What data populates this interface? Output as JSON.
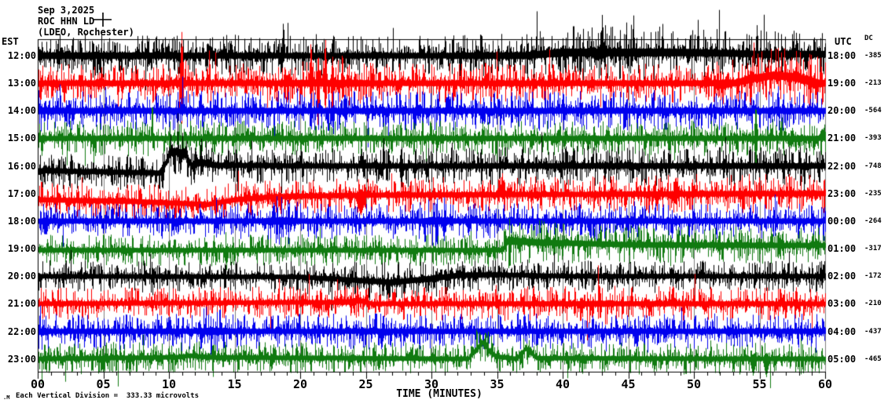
{
  "header": {
    "date": "Sep 3,2025",
    "station": "ROC HHN LD",
    "network": "(LDEO, Rochester)"
  },
  "axes": {
    "left_title": "EST",
    "right_title": "UTC",
    "dc_title": "DC",
    "x_title": "TIME (MINUTES)"
  },
  "footer": {
    "mark": ".M",
    "note": "Each Vertical Division =  333.33 microvolts"
  },
  "chart_data": {
    "type": "line",
    "subtype": "helicorder-seismogram",
    "title": "ROC HHN LD (LDEO, Rochester) Sep 3,2025",
    "xlabel": "TIME (MINUTES)",
    "x_range": [
      0,
      60
    ],
    "x_major_tick": 5,
    "x_minor_tick": 1,
    "x_tick_labels": [
      "00",
      "05",
      "10",
      "15",
      "20",
      "25",
      "30",
      "35",
      "40",
      "45",
      "50",
      "55",
      "60"
    ],
    "grid": true,
    "grid_color": "#808080",
    "vertical_division_microvolts": 333.33,
    "trace_colors_cycle": [
      "#000000",
      "#ff0000",
      "#0000ee",
      "#107a10"
    ],
    "traces": [
      {
        "est": "12:00",
        "utc": "18:00",
        "dc": "-385",
        "color": "#000000",
        "spike_prob": 0.05,
        "band_env": [
          [
            0,
            12
          ],
          [
            10,
            11
          ],
          [
            20,
            10
          ],
          [
            30,
            10
          ],
          [
            36,
            12
          ],
          [
            40,
            14
          ],
          [
            48,
            14
          ],
          [
            52,
            12
          ],
          [
            60,
            12
          ]
        ],
        "drift_env": [
          [
            0,
            0
          ],
          [
            37,
            0
          ],
          [
            40,
            4
          ],
          [
            50,
            4
          ],
          [
            55,
            2
          ],
          [
            60,
            2
          ]
        ],
        "spikes": [
          [
            18.7,
            46,
            10,
            0.15
          ],
          [
            21.2,
            28,
            8,
            0.12
          ],
          [
            33.8,
            34,
            10,
            0.12
          ],
          [
            43.0,
            50,
            12,
            0.15
          ],
          [
            47.6,
            38,
            10,
            0.12
          ],
          [
            50.3,
            42,
            10,
            0.12
          ],
          [
            54.8,
            40,
            10,
            0.12
          ],
          [
            57.5,
            30,
            8,
            0.1
          ]
        ]
      },
      {
        "est": "13:00",
        "utc": "19:00",
        "dc": "-213",
        "color": "#ff0000",
        "spike_prob": 0.05,
        "band_env": [
          [
            0,
            10
          ],
          [
            18,
            10
          ],
          [
            20,
            12
          ],
          [
            24,
            12
          ],
          [
            26,
            10
          ],
          [
            50,
            10
          ],
          [
            54,
            13
          ],
          [
            59,
            15
          ],
          [
            60,
            12
          ]
        ],
        "drift_env": [
          [
            0,
            0
          ],
          [
            53,
            0
          ],
          [
            54.5,
            6
          ],
          [
            56,
            10
          ],
          [
            57.5,
            8
          ],
          [
            58.5,
            4
          ],
          [
            59.5,
            0
          ],
          [
            60,
            0
          ]
        ],
        "spikes": [
          [
            6.5,
            28,
            10,
            0.1
          ],
          [
            10.96,
            66,
            52,
            0.2
          ],
          [
            20.8,
            58,
            30,
            0.15
          ],
          [
            21.35,
            40,
            68,
            0.15
          ],
          [
            21.9,
            62,
            40,
            0.15
          ],
          [
            22.45,
            35,
            55,
            0.15
          ],
          [
            23.2,
            45,
            25,
            0.12
          ],
          [
            25.4,
            25,
            12,
            0.1
          ],
          [
            34.1,
            34,
            10,
            0.12
          ]
        ]
      },
      {
        "est": "14:00",
        "utc": "20:00",
        "dc": "-564",
        "color": "#0000ee",
        "spike_prob": 0.045,
        "band_env": [
          [
            0,
            12
          ],
          [
            2,
            10
          ],
          [
            30,
            10
          ],
          [
            60,
            10
          ]
        ],
        "drift_env": [
          [
            0,
            0
          ],
          [
            60,
            0
          ]
        ],
        "spikes": [
          [
            13.5,
            18,
            14,
            0.15
          ],
          [
            22.5,
            10,
            34,
            0.12
          ]
        ]
      },
      {
        "est": "15:00",
        "utc": "21:00",
        "dc": "-393",
        "color": "#107a10",
        "spike_prob": 0.04,
        "band_env": [
          [
            0,
            9
          ],
          [
            60,
            9
          ]
        ],
        "drift_env": [
          [
            0,
            0
          ],
          [
            60,
            0
          ]
        ],
        "spikes": [
          [
            40.2,
            16,
            12,
            0.1
          ],
          [
            54.7,
            46,
            40,
            0.15
          ]
        ]
      },
      {
        "est": "16:00",
        "utc": "22:00",
        "dc": "-748",
        "color": "#000000",
        "spike_prob": 0.045,
        "band_env": [
          [
            0,
            9
          ],
          [
            9.4,
            9
          ],
          [
            10,
            13
          ],
          [
            12.5,
            12
          ],
          [
            14,
            9
          ],
          [
            30,
            9
          ],
          [
            40,
            10
          ],
          [
            60,
            10
          ]
        ],
        "drift_env": [
          [
            0,
            -6
          ],
          [
            9.2,
            -9
          ],
          [
            9.7,
            2
          ],
          [
            10.1,
            19
          ],
          [
            11.2,
            16
          ],
          [
            11.7,
            0
          ],
          [
            12.4,
            5
          ],
          [
            13.5,
            1
          ],
          [
            20,
            0
          ],
          [
            60,
            0
          ]
        ],
        "spikes": [
          [
            9.5,
            6,
            30,
            0.2
          ],
          [
            10.45,
            4,
            40,
            0.1
          ],
          [
            11.9,
            8,
            26,
            0.15
          ],
          [
            15.2,
            10,
            36,
            0.12
          ],
          [
            27.7,
            30,
            34,
            0.12
          ]
        ]
      },
      {
        "est": "17:00",
        "utc": "23:00",
        "dc": "-235",
        "color": "#ff0000",
        "spike_prob": 0.04,
        "band_env": [
          [
            0,
            9
          ],
          [
            40,
            9
          ],
          [
            50,
            10
          ],
          [
            60,
            10
          ]
        ],
        "drift_env": [
          [
            0,
            -8
          ],
          [
            7,
            -10
          ],
          [
            13,
            -14
          ],
          [
            15,
            -8
          ],
          [
            18,
            -4
          ],
          [
            25,
            -2
          ],
          [
            60,
            0
          ]
        ],
        "spikes": [
          [
            23.8,
            6,
            18,
            0.2
          ],
          [
            24.6,
            8,
            26,
            0.5
          ],
          [
            35.4,
            30,
            10,
            0.12
          ],
          [
            47,
            18,
            8,
            0.1
          ]
        ]
      },
      {
        "est": "18:00",
        "utc": "00:00",
        "dc": "-264",
        "color": "#0000ee",
        "spike_prob": 0.04,
        "band_env": [
          [
            0,
            9
          ],
          [
            17,
            9
          ],
          [
            18,
            13
          ],
          [
            19,
            13
          ],
          [
            20,
            9
          ],
          [
            29,
            9
          ],
          [
            30,
            13
          ],
          [
            31,
            12
          ],
          [
            32,
            9
          ],
          [
            44,
            9
          ],
          [
            45,
            11
          ],
          [
            46,
            9
          ],
          [
            60,
            9
          ]
        ],
        "drift_env": [
          [
            0,
            0
          ],
          [
            60,
            0
          ]
        ],
        "spikes": [
          [
            24.5,
            8,
            20,
            0.1
          ]
        ]
      },
      {
        "est": "19:00",
        "utc": "01:00",
        "dc": "-317",
        "color": "#107a10",
        "spike_prob": 0.04,
        "band_env": [
          [
            0,
            8
          ],
          [
            35.4,
            8
          ],
          [
            35.8,
            14
          ],
          [
            37,
            12
          ],
          [
            40,
            10
          ],
          [
            60,
            9
          ]
        ],
        "drift_env": [
          [
            0,
            -2
          ],
          [
            35.4,
            -2
          ],
          [
            35.8,
            10
          ],
          [
            38,
            8
          ],
          [
            45,
            5
          ],
          [
            60,
            4
          ]
        ],
        "spikes": [
          [
            35.6,
            24,
            6,
            0.15
          ]
        ]
      },
      {
        "est": "20:00",
        "utc": "02:00",
        "dc": "-172",
        "color": "#000000",
        "spike_prob": 0.04,
        "band_env": [
          [
            0,
            8
          ],
          [
            20,
            8
          ],
          [
            26,
            10
          ],
          [
            33,
            10
          ],
          [
            36,
            8
          ],
          [
            60,
            8
          ]
        ],
        "drift_env": [
          [
            0,
            0
          ],
          [
            20,
            -1
          ],
          [
            24,
            -5
          ],
          [
            27,
            -8
          ],
          [
            30,
            -3
          ],
          [
            32,
            1
          ],
          [
            35,
            2
          ],
          [
            40,
            0
          ],
          [
            60,
            0
          ]
        ],
        "spikes": [
          [
            10.5,
            18,
            8,
            0.1
          ],
          [
            26.6,
            6,
            26,
            0.12
          ],
          [
            52.8,
            16,
            14,
            0.1
          ]
        ]
      },
      {
        "est": "21:00",
        "utc": "03:00",
        "dc": "-210",
        "color": "#ff0000",
        "spike_prob": 0.04,
        "band_env": [
          [
            0,
            8
          ],
          [
            23,
            8
          ],
          [
            24,
            11
          ],
          [
            25,
            8
          ],
          [
            41,
            9
          ],
          [
            43,
            11
          ],
          [
            44,
            9
          ],
          [
            60,
            8
          ]
        ],
        "drift_env": [
          [
            0,
            0
          ],
          [
            23.5,
            2
          ],
          [
            24.5,
            4
          ],
          [
            25.5,
            0
          ],
          [
            60,
            0
          ]
        ],
        "spikes": [
          [
            34.9,
            26,
            8,
            0.12
          ],
          [
            44.5,
            18,
            6,
            0.1
          ],
          [
            57.8,
            24,
            10,
            0.12
          ]
        ]
      },
      {
        "est": "22:00",
        "utc": "04:00",
        "dc": "-437",
        "color": "#0000ee",
        "spike_prob": 0.04,
        "band_env": [
          [
            0,
            10
          ],
          [
            1,
            9
          ],
          [
            12,
            9
          ],
          [
            13,
            13
          ],
          [
            14,
            12
          ],
          [
            15,
            9
          ],
          [
            60,
            9
          ]
        ],
        "drift_env": [
          [
            0,
            0
          ],
          [
            60,
            0
          ]
        ],
        "spikes": [
          [
            24.7,
            8,
            18,
            0.1
          ],
          [
            49.5,
            14,
            10,
            0.1
          ]
        ]
      },
      {
        "est": "23:00",
        "utc": "05:00",
        "dc": "-465",
        "color": "#107a10",
        "spike_prob": 0.05,
        "band_env": [
          [
            0,
            8
          ],
          [
            33,
            8
          ],
          [
            34,
            10
          ],
          [
            35,
            8
          ],
          [
            60,
            8
          ]
        ],
        "drift_env": [
          [
            0,
            0
          ],
          [
            10.5,
            2
          ],
          [
            11.5,
            4
          ],
          [
            13,
            2
          ],
          [
            32.8,
            0
          ],
          [
            33.3,
            10
          ],
          [
            33.9,
            21
          ],
          [
            34.4,
            10
          ],
          [
            34.9,
            3
          ],
          [
            36.5,
            0
          ],
          [
            37.0,
            10
          ],
          [
            37.2,
            14
          ],
          [
            37.6,
            7
          ],
          [
            38,
            1
          ],
          [
            54,
            0
          ],
          [
            60,
            0
          ]
        ],
        "spikes": [
          [
            7,
            6,
            14,
            0.2
          ],
          [
            17.8,
            6,
            18,
            0.2
          ],
          [
            26,
            6,
            16,
            0.2
          ],
          [
            54.5,
            6,
            22,
            0.3
          ],
          [
            55.5,
            8,
            24,
            0.3
          ]
        ]
      }
    ]
  }
}
